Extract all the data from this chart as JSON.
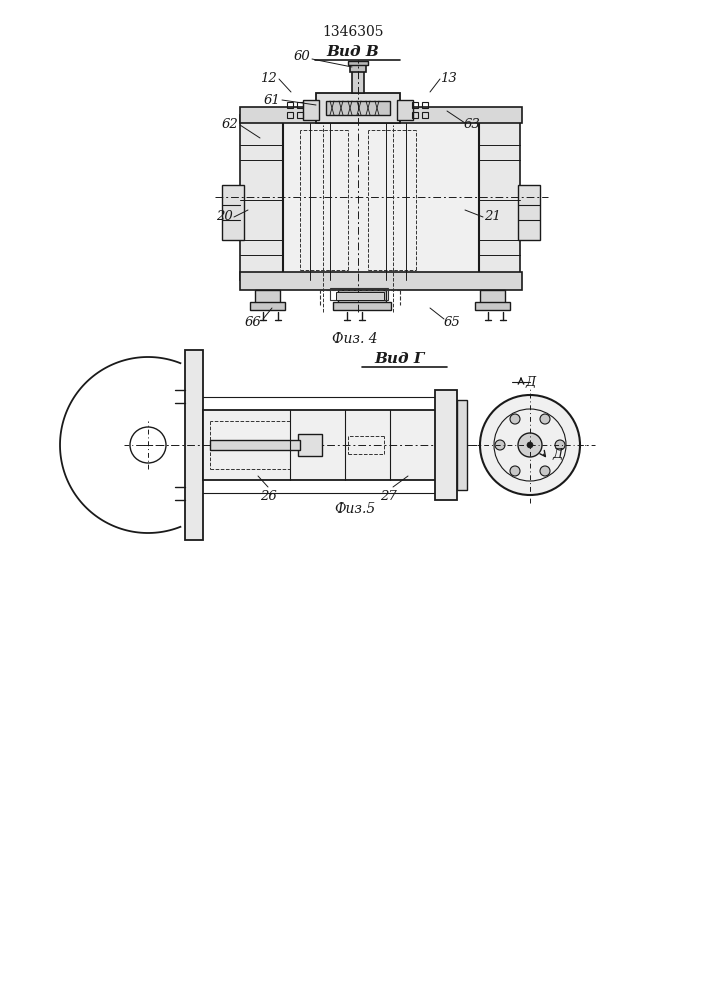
{
  "title": "1346305",
  "fig4_label": "Физ. 4",
  "fig5_label": "Физ.5",
  "vid_b": "Вид В",
  "vid_g": "Вид Г",
  "bg_color": "#ffffff",
  "line_color": "#1a1a1a",
  "dash_color": "#333333"
}
